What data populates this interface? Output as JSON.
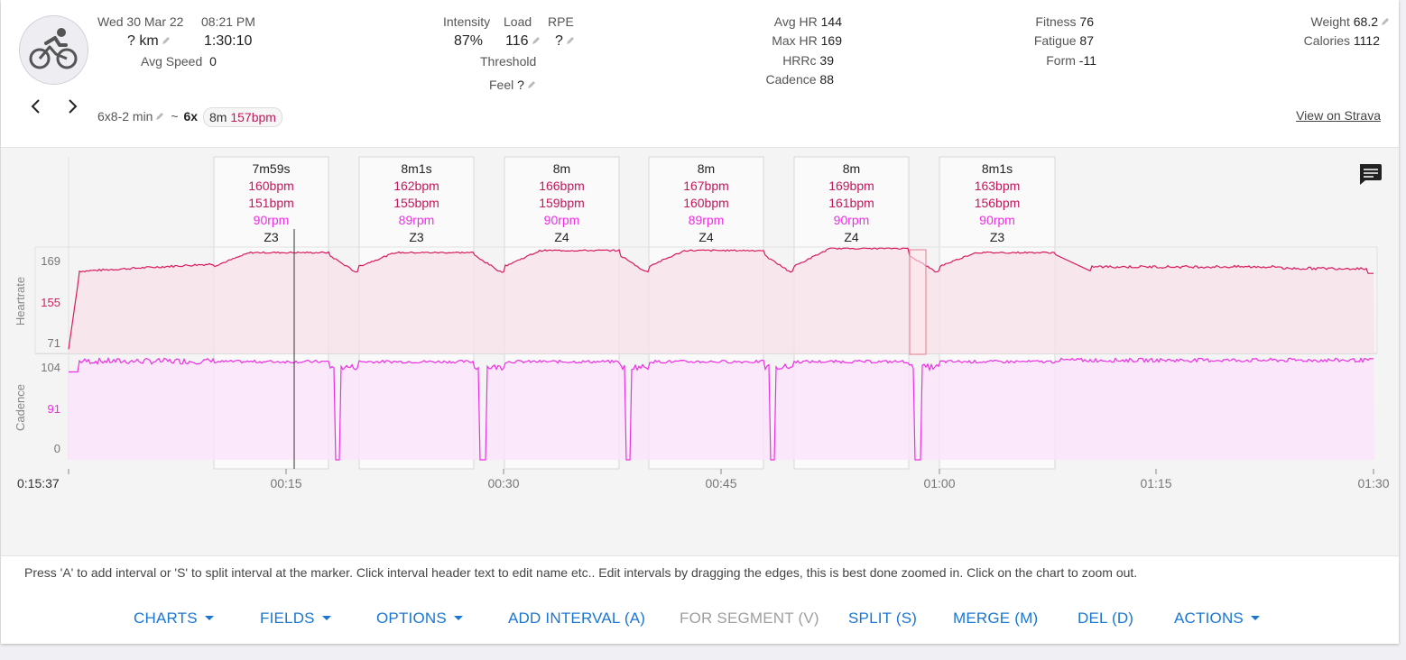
{
  "activity": {
    "date": "Wed 30 Mar 22",
    "time": "08:21 PM",
    "distance": "? km",
    "duration": "1:30:10",
    "avg_speed_label": "Avg Speed",
    "avg_speed": "0",
    "icon": "cycling-icon"
  },
  "load": {
    "intensity_label": "Intensity",
    "intensity": "87%",
    "load_label": "Load",
    "load": "116",
    "rpe_label": "RPE",
    "rpe": "?",
    "threshold_label": "Threshold",
    "feel_label": "Feel",
    "feel": "?"
  },
  "hr": {
    "avg_label": "Avg HR",
    "avg": "144",
    "max_label": "Max HR",
    "max": "169",
    "hrrc_label": "HRRc",
    "hrrc": "39",
    "cadence_label": "Cadence",
    "cadence": "88"
  },
  "fitness": {
    "fitness_label": "Fitness",
    "fitness": "76",
    "fatigue_label": "Fatigue",
    "fatigue": "87",
    "form_label": "Form",
    "form": "-11"
  },
  "body": {
    "weight_label": "Weight",
    "weight": "68.2",
    "calories_label": "Calories",
    "calories": "1112"
  },
  "workout": {
    "name": "6x8-2 min",
    "sep": "~",
    "count": "6x",
    "chip_duration": "8m",
    "chip_hr": "157bpm"
  },
  "view_on_strava": "View on Strava",
  "colors": {
    "hr": "#d81b60",
    "hr_fill": "#f7e4ea",
    "cadence": "#ee2ee6",
    "cadence_fill": "#fbe4fa",
    "accent": "#1976d2"
  },
  "chart": {
    "cursor_time": "0:15:37",
    "x_ticks": [
      "00:15",
      "00:30",
      "00:45",
      "01:00",
      "01:15",
      "01:30"
    ],
    "hr_axis": {
      "label": "Heartrate",
      "ticks": [
        "169",
        "155",
        "71"
      ]
    },
    "cadence_axis": {
      "label": "Cadence",
      "ticks": [
        "104",
        "91",
        "0"
      ]
    },
    "intervals": [
      {
        "duration": "7m59s",
        "avg_hr": "160bpm",
        "hr2": "151bpm",
        "cadence": "90rpm",
        "zone": "Z3"
      },
      {
        "duration": "8m1s",
        "avg_hr": "162bpm",
        "hr2": "155bpm",
        "cadence": "89rpm",
        "zone": "Z3"
      },
      {
        "duration": "8m",
        "avg_hr": "166bpm",
        "hr2": "159bpm",
        "cadence": "90rpm",
        "zone": "Z4"
      },
      {
        "duration": "8m",
        "avg_hr": "167bpm",
        "hr2": "160bpm",
        "cadence": "89rpm",
        "zone": "Z4"
      },
      {
        "duration": "8m",
        "avg_hr": "169bpm",
        "hr2": "161bpm",
        "cadence": "90rpm",
        "zone": "Z4"
      },
      {
        "duration": "8m1s",
        "avg_hr": "163bpm",
        "hr2": "156bpm",
        "cadence": "90rpm",
        "zone": "Z3"
      }
    ]
  },
  "hint": "Press 'A' to add interval or 'S' to split interval at the marker. Click interval header text to edit name etc.. Edit intervals by dragging the edges, this is best done zoomed in. Click on the chart to zoom out.",
  "toolbar": {
    "charts": "CHARTS",
    "fields": "FIELDS",
    "options": "OPTIONS",
    "add_interval": "ADD INTERVAL (A)",
    "for_segment": "FOR SEGMENT (V)",
    "split": "SPLIT (S)",
    "merge": "MERGE (M)",
    "del": "DEL (D)",
    "actions": "ACTIONS"
  }
}
